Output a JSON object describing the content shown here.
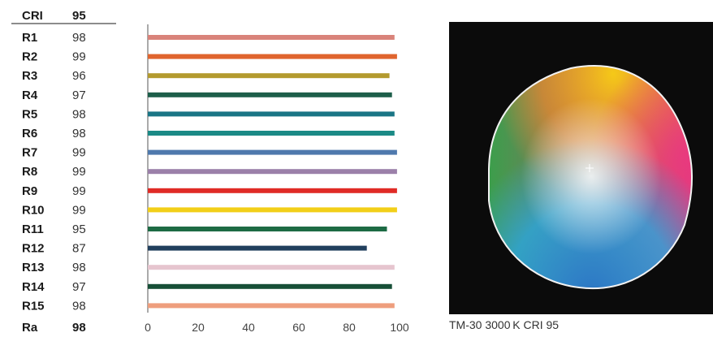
{
  "chart_data": {
    "type": "bar",
    "orientation": "horizontal",
    "header": {
      "label": "CRI",
      "value": "95"
    },
    "categories": [
      "R1",
      "R2",
      "R3",
      "R4",
      "R5",
      "R6",
      "R7",
      "R8",
      "R9",
      "R10",
      "R11",
      "R12",
      "R13",
      "R14",
      "R15"
    ],
    "values": [
      98,
      99,
      96,
      97,
      98,
      98,
      99,
      99,
      99,
      99,
      95,
      87,
      98,
      97,
      98
    ],
    "colors": [
      "#d9837a",
      "#e0652e",
      "#b39a2e",
      "#1d5e4a",
      "#1a7585",
      "#1b8a86",
      "#4f79ad",
      "#9b80a9",
      "#e02b26",
      "#f2cf18",
      "#1d6b44",
      "#213f5d",
      "#e6c5cf",
      "#174f37",
      "#ee9e7d"
    ],
    "summary": {
      "label": "Ra",
      "value": "98"
    },
    "xticks": [
      0,
      20,
      40,
      60,
      80,
      100
    ],
    "xlim": [
      0,
      100
    ],
    "grid": false
  },
  "gamut_panel": {
    "caption": "TM-30 3000 K CRI 95",
    "background": "#0b0b0b"
  }
}
